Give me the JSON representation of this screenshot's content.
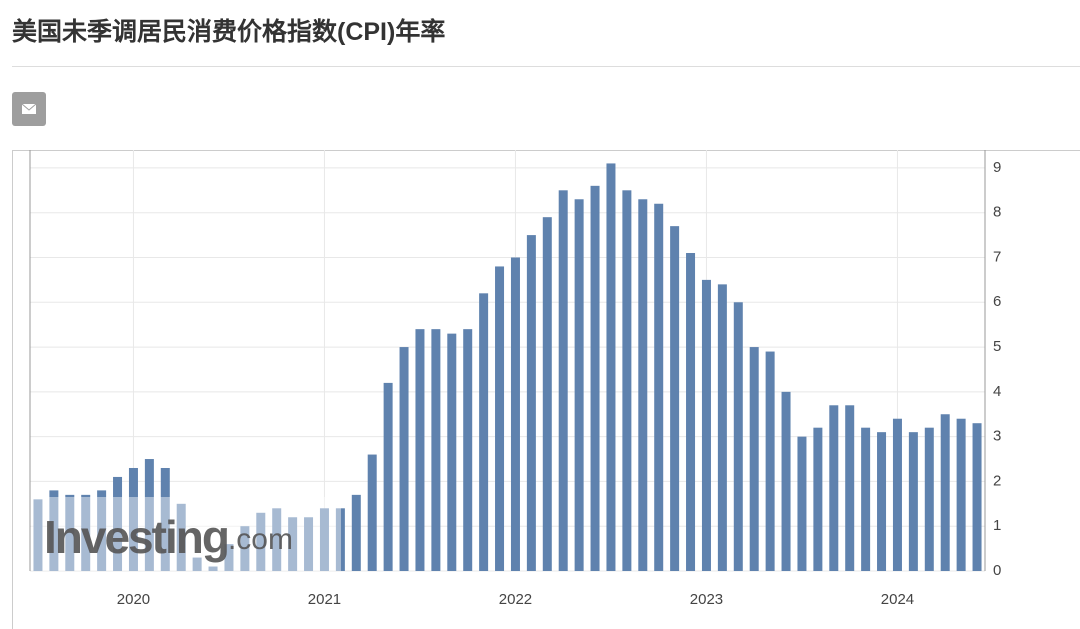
{
  "header": {
    "title": "美国未季调居民消费价格指数(CPI)年率"
  },
  "chart_data": {
    "type": "bar",
    "categories": [
      null,
      null,
      null,
      null,
      null,
      null,
      null,
      null,
      null,
      null,
      null,
      null,
      null,
      null,
      null,
      null,
      null,
      null,
      null,
      null,
      null,
      null,
      null,
      null,
      null,
      null,
      null,
      null,
      null,
      null,
      null,
      null,
      null,
      null,
      null,
      null,
      null,
      null,
      null,
      null,
      null,
      null,
      null,
      null,
      null,
      null,
      null,
      null,
      null,
      null,
      null,
      null,
      null,
      null,
      null,
      null,
      null,
      null,
      null,
      null
    ],
    "values": [
      1.6,
      1.8,
      1.7,
      1.7,
      1.8,
      2.1,
      2.3,
      2.5,
      2.3,
      1.5,
      0.3,
      0.1,
      0.6,
      1.0,
      1.3,
      1.4,
      1.2,
      1.2,
      1.4,
      1.4,
      1.7,
      2.6,
      4.2,
      5.0,
      5.4,
      5.4,
      5.3,
      5.4,
      6.2,
      6.8,
      7.0,
      7.5,
      7.9,
      8.5,
      8.3,
      8.6,
      9.1,
      8.5,
      8.3,
      8.2,
      7.7,
      7.1,
      6.5,
      6.4,
      6.0,
      5.0,
      4.9,
      4.0,
      3.0,
      3.2,
      3.7,
      3.7,
      3.2,
      3.1,
      3.4,
      3.1,
      3.2,
      3.5,
      3.4,
      3.3
    ],
    "color": "#5f82ae",
    "ylim": [
      0,
      9.4
    ],
    "yticks": [
      0,
      1,
      2,
      3,
      4,
      5,
      6,
      7,
      8,
      9
    ],
    "xticks": [
      {
        "value": 7,
        "label": "2020"
      },
      {
        "value": 19,
        "label": "2021"
      },
      {
        "value": 31,
        "label": "2022"
      },
      {
        "value": 43,
        "label": "2023"
      },
      {
        "value": 55,
        "label": "2024"
      }
    ],
    "grid": true,
    "watermark": {
      "brand": "Investing",
      "suffix": ".com"
    }
  }
}
